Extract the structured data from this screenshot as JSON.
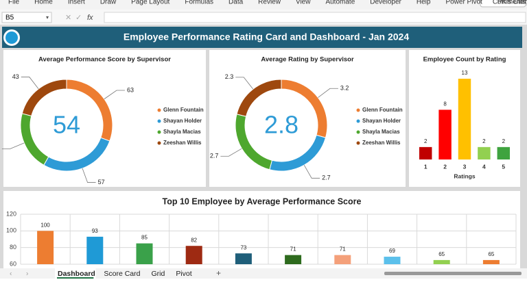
{
  "menu": [
    "File",
    "Home",
    "Insert",
    "Draw",
    "Page Layout",
    "Formulas",
    "Data",
    "Review",
    "View",
    "Automate",
    "Developer",
    "Help",
    "Power Pivot",
    "PK's Utility Tool V3.0"
  ],
  "comments_button": "Comments",
  "name_box": "B5",
  "formula_icon": "fx",
  "header": {
    "title": "Employee Performance Rating Card and Dashboard - Jan 2024"
  },
  "sheet_tabs": [
    "Dashboard",
    "Score Card",
    "Grid",
    "Pivot"
  ],
  "chart_data": [
    {
      "type": "donut",
      "title": "Average Performance Score by Supervisor",
      "center_value": 54,
      "categories": [
        "Glenn Fountain",
        "Shayan Holder",
        "Shayla Macias",
        "Zeeshan Willis"
      ],
      "values": [
        63,
        57,
        43,
        43
      ],
      "colors": [
        "#ed7d31",
        "#2e9bd6",
        "#4ea72e",
        "#9e480e"
      ]
    },
    {
      "type": "donut",
      "title": "Average Rating by Supervisor",
      "center_value": 2.8,
      "categories": [
        "Glenn Fountain",
        "Shayan Holder",
        "Shayla Macias",
        "Zeeshan Willis"
      ],
      "values": [
        3.2,
        2.7,
        2.7,
        2.3
      ],
      "colors": [
        "#ed7d31",
        "#2e9bd6",
        "#4ea72e",
        "#9e480e"
      ]
    },
    {
      "type": "bar",
      "title": "Employee Count by Rating",
      "x_label": "Ratings",
      "categories": [
        "1",
        "2",
        "3",
        "4",
        "5"
      ],
      "values": [
        2,
        8,
        13,
        2,
        2
      ],
      "colors": [
        "#c00000",
        "#ff0000",
        "#ffc000",
        "#92d050",
        "#3fa33f"
      ],
      "data_labels": true
    },
    {
      "type": "bar",
      "title": "Top 10 Employee by Average Performance Score",
      "categories": [
        null,
        null,
        null,
        null,
        null,
        null,
        null,
        null,
        null,
        null
      ],
      "values": [
        100,
        93,
        85,
        82,
        73,
        71,
        71,
        69,
        65,
        65
      ],
      "colors": [
        "#ed7d31",
        "#1f9ad6",
        "#3aa14a",
        "#9e2a12",
        "#1f5f7a",
        "#2e6b1e",
        "#f4a07a",
        "#5bc0eb",
        "#92d050",
        "#ed7d31"
      ],
      "ylim": [
        60,
        120
      ],
      "yticks": [
        60,
        80,
        100,
        120
      ],
      "grid": true,
      "data_labels": true
    }
  ]
}
